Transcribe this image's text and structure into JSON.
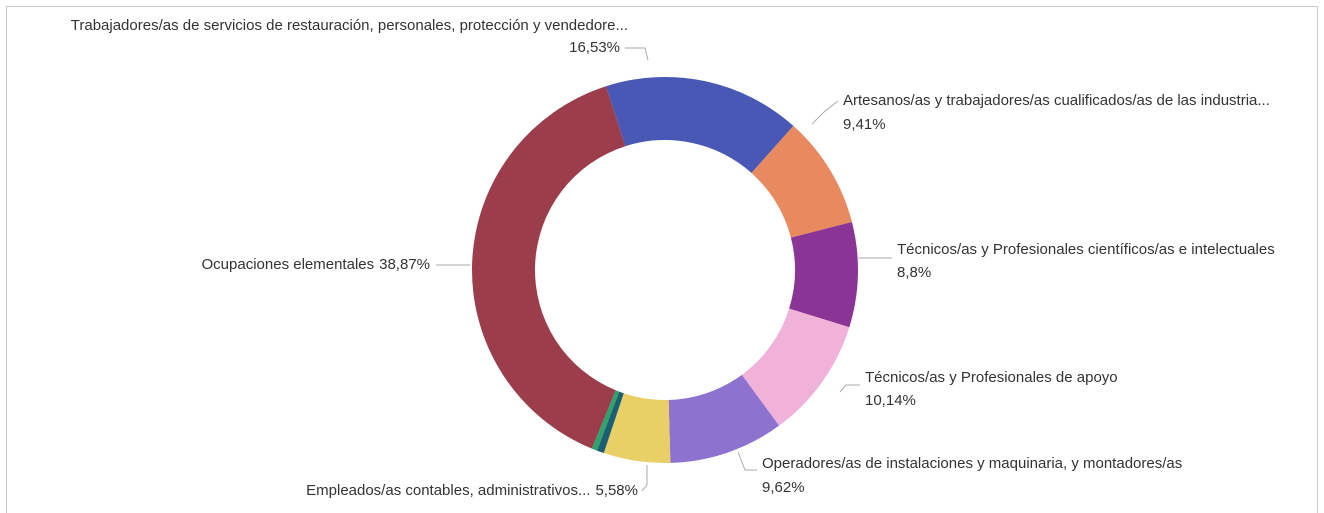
{
  "chart_data": {
    "type": "donut",
    "categories": [
      "Trabajadores/as de servicios de restauración, personales, protección y vendedore...",
      "Artesanos/as y trabajadores/as cualificados/as de las industria...",
      "Técnicos/as y Profesionales científicos/as e intelectuales",
      "Técnicos/as y Profesionales de apoyo",
      "Operadores/as de instalaciones y maquinaria, y montadores/as",
      "Empleados/as contables, administrativos...",
      null,
      null,
      "Ocupaciones elementales"
    ],
    "values": [
      16.53,
      9.41,
      8.8,
      10.14,
      9.62,
      5.58,
      0.6,
      0.45,
      38.87
    ],
    "value_labels": [
      "16,53%",
      "9,41%",
      "8,8%",
      "10,14%",
      "9,62%",
      "5,58%",
      null,
      null,
      "38,87%"
    ],
    "colors": [
      "#4a58b5",
      "#e8895f",
      "#8a3595",
      "#f1b2d9",
      "#8d72d0",
      "#e8d066",
      "#1c5f72",
      "#2ea36a",
      "#9b3d4b"
    ]
  }
}
